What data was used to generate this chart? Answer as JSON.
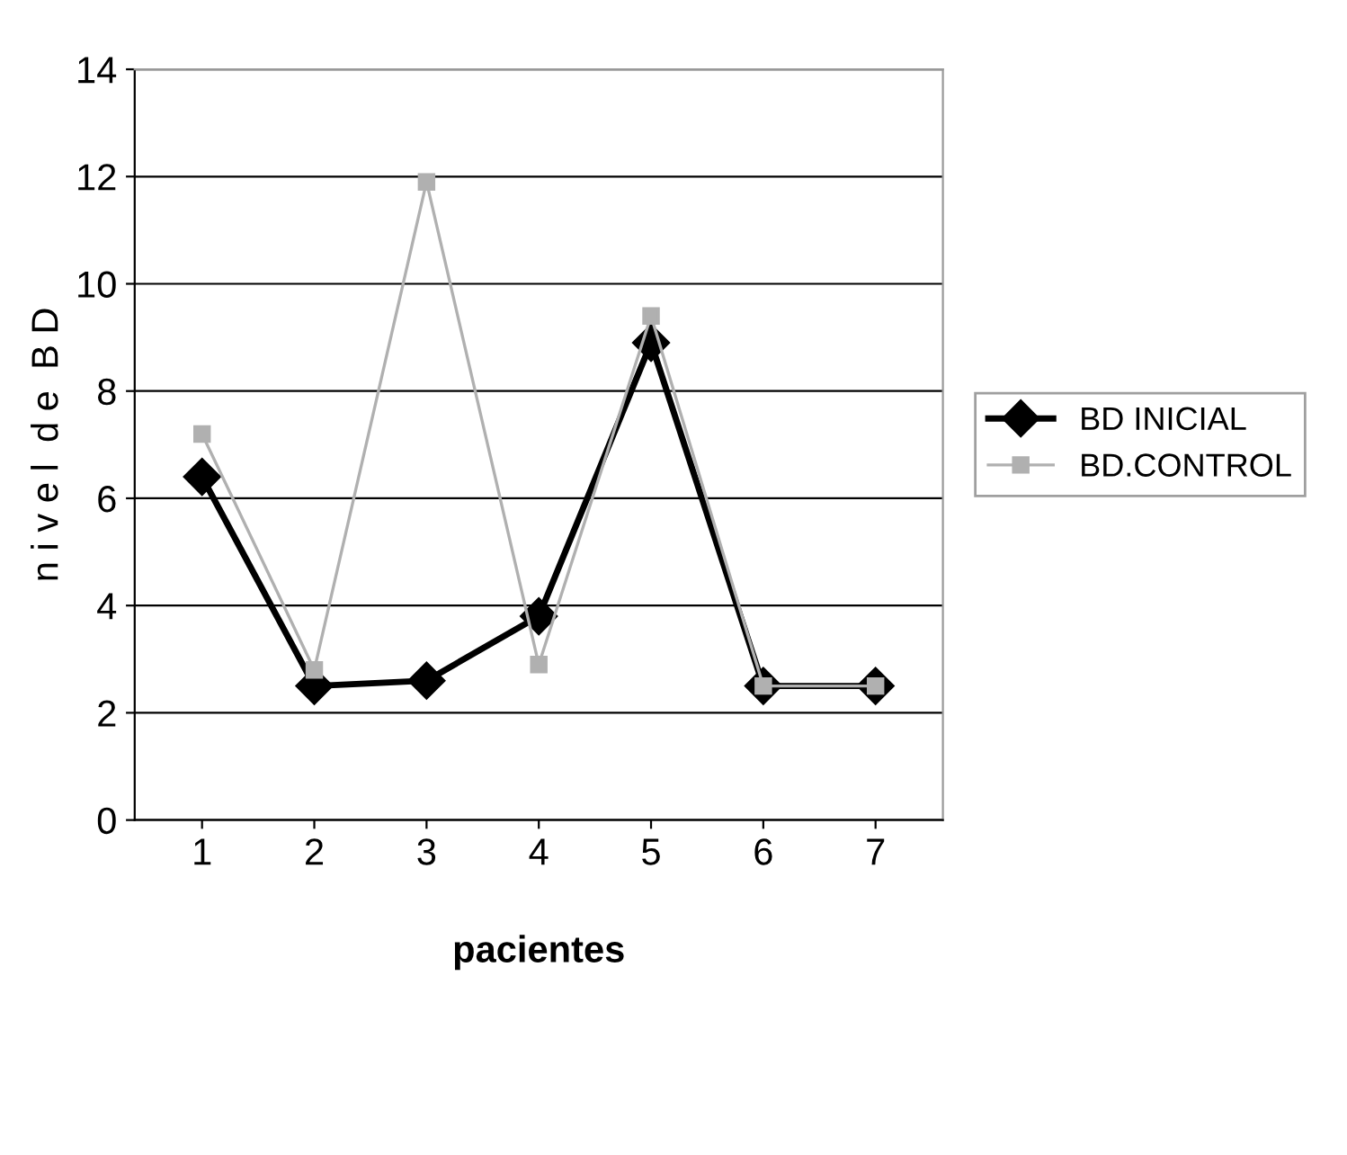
{
  "chart_data": {
    "type": "line",
    "xlabel": "pacientes",
    "ylabel": "n i v e l  d e  B D",
    "categories": [
      "1",
      "2",
      "3",
      "4",
      "5",
      "6",
      "7"
    ],
    "series": [
      {
        "name": "BD INICIAL",
        "color": "#000000",
        "marker": "diamond",
        "values": [
          6.4,
          2.5,
          2.6,
          3.8,
          8.9,
          2.5,
          2.5
        ]
      },
      {
        "name": "BD.CONTROL",
        "color": "#b0b0b0",
        "marker": "square",
        "values": [
          7.2,
          2.8,
          11.9,
          2.9,
          9.4,
          2.5,
          2.5
        ]
      }
    ],
    "ylim": [
      0,
      14
    ],
    "yticks": [
      0,
      2,
      4,
      6,
      8,
      10,
      12,
      14
    ],
    "grid": "y",
    "legend": "right",
    "line_style": "solid"
  }
}
